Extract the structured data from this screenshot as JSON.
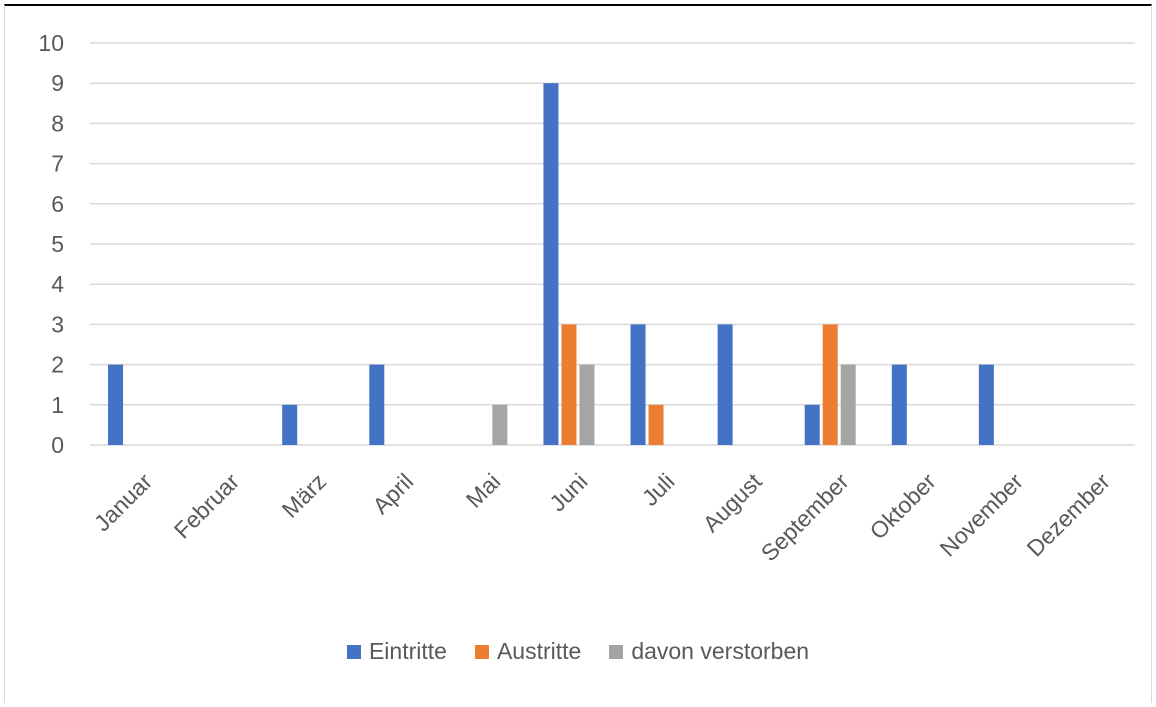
{
  "chart_data": {
    "type": "bar",
    "categories": [
      "Januar",
      "Februar",
      "März",
      "April",
      "Mai",
      "Juni",
      "Juli",
      "August",
      "September",
      "Oktober",
      "November",
      "Dezember"
    ],
    "series": [
      {
        "name": "Eintritte",
        "color": "#4472c4",
        "values": [
          2,
          0,
          1,
          2,
          0,
          9,
          3,
          3,
          1,
          2,
          2,
          0
        ]
      },
      {
        "name": "Austritte",
        "color": "#ed7d31",
        "values": [
          0,
          0,
          0,
          0,
          0,
          3,
          1,
          0,
          3,
          0,
          0,
          0
        ]
      },
      {
        "name": "davon verstorben",
        "color": "#a5a5a5",
        "values": [
          0,
          0,
          0,
          0,
          1,
          2,
          0,
          0,
          2,
          0,
          0,
          0
        ]
      }
    ],
    "yticks": [
      "0",
      "1",
      "2",
      "3",
      "4",
      "5",
      "6",
      "7",
      "8",
      "9",
      "10"
    ],
    "ylim": [
      0,
      10
    ],
    "grid": true,
    "legend_position": "bottom"
  }
}
